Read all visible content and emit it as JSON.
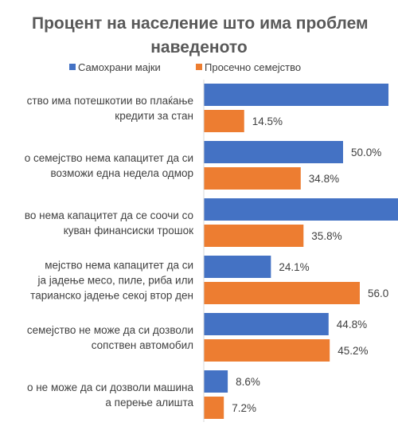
{
  "chart_data": {
    "type": "bar",
    "orientation": "horizontal",
    "title_line1": "Процент на население што има проблем",
    "title_line2": "наведеното",
    "series": [
      {
        "name": "Самохрани мајки",
        "color": "#4472C4",
        "values": [
          null,
          50.0,
          null,
          24.1,
          44.8,
          8.6
        ]
      },
      {
        "name": "Просечно семејство",
        "color": "#ED7D31",
        "values": [
          14.5,
          34.8,
          35.8,
          56.0,
          45.2,
          7.2
        ]
      }
    ],
    "bar_values_unlabeled": [
      66.3,
      null,
      69.8,
      null,
      null,
      null
    ],
    "data_labels": [
      [
        "",
        "14.5%"
      ],
      [
        "50.0%",
        "34.8%"
      ],
      [
        "",
        "35.8%"
      ],
      [
        "24.1%",
        "56.0"
      ],
      [
        "44.8%",
        "45.2%"
      ],
      [
        "8.6%",
        "7.2%"
      ]
    ],
    "categories": [
      [
        "ство има потешкотии во плаќање",
        "кредити за стан"
      ],
      [
        "о семејство нема капацитет да си",
        "возможи една недела одмор"
      ],
      [
        "во нема капацитет да се соочи со",
        "куван финансиски трошок"
      ],
      [
        "мејство нема капацитет да си",
        "ја јадење месо, пиле, риба или",
        "тарианско јадење секој втор ден"
      ],
      [
        "семејство не може да си дозволи",
        "сопствен автомобил"
      ],
      [
        "о не може да си дозволи машина",
        "а перење алишта"
      ]
    ],
    "xlim": [
      0,
      100
    ],
    "legend_position": "top",
    "grid": false
  }
}
